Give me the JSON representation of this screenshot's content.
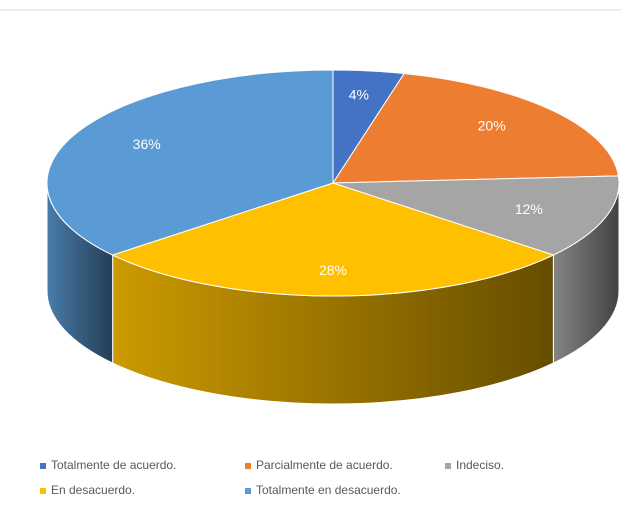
{
  "chart_data": {
    "type": "pie3d",
    "categories": [
      "Totalmente de acuerdo.",
      "Parcialmente de acuerdo.",
      "Indeciso.",
      "En desacuerdo.",
      "Totalmente en desacuerdo."
    ],
    "values": [
      4,
      20,
      12,
      28,
      36
    ],
    "value_labels": [
      "4%",
      "20%",
      "12%",
      "28%",
      "36%"
    ],
    "colors": [
      "#4472c4",
      "#ed7d31",
      "#a5a5a5",
      "#ffc000",
      "#5b9bd5"
    ],
    "legend": "bottom"
  }
}
